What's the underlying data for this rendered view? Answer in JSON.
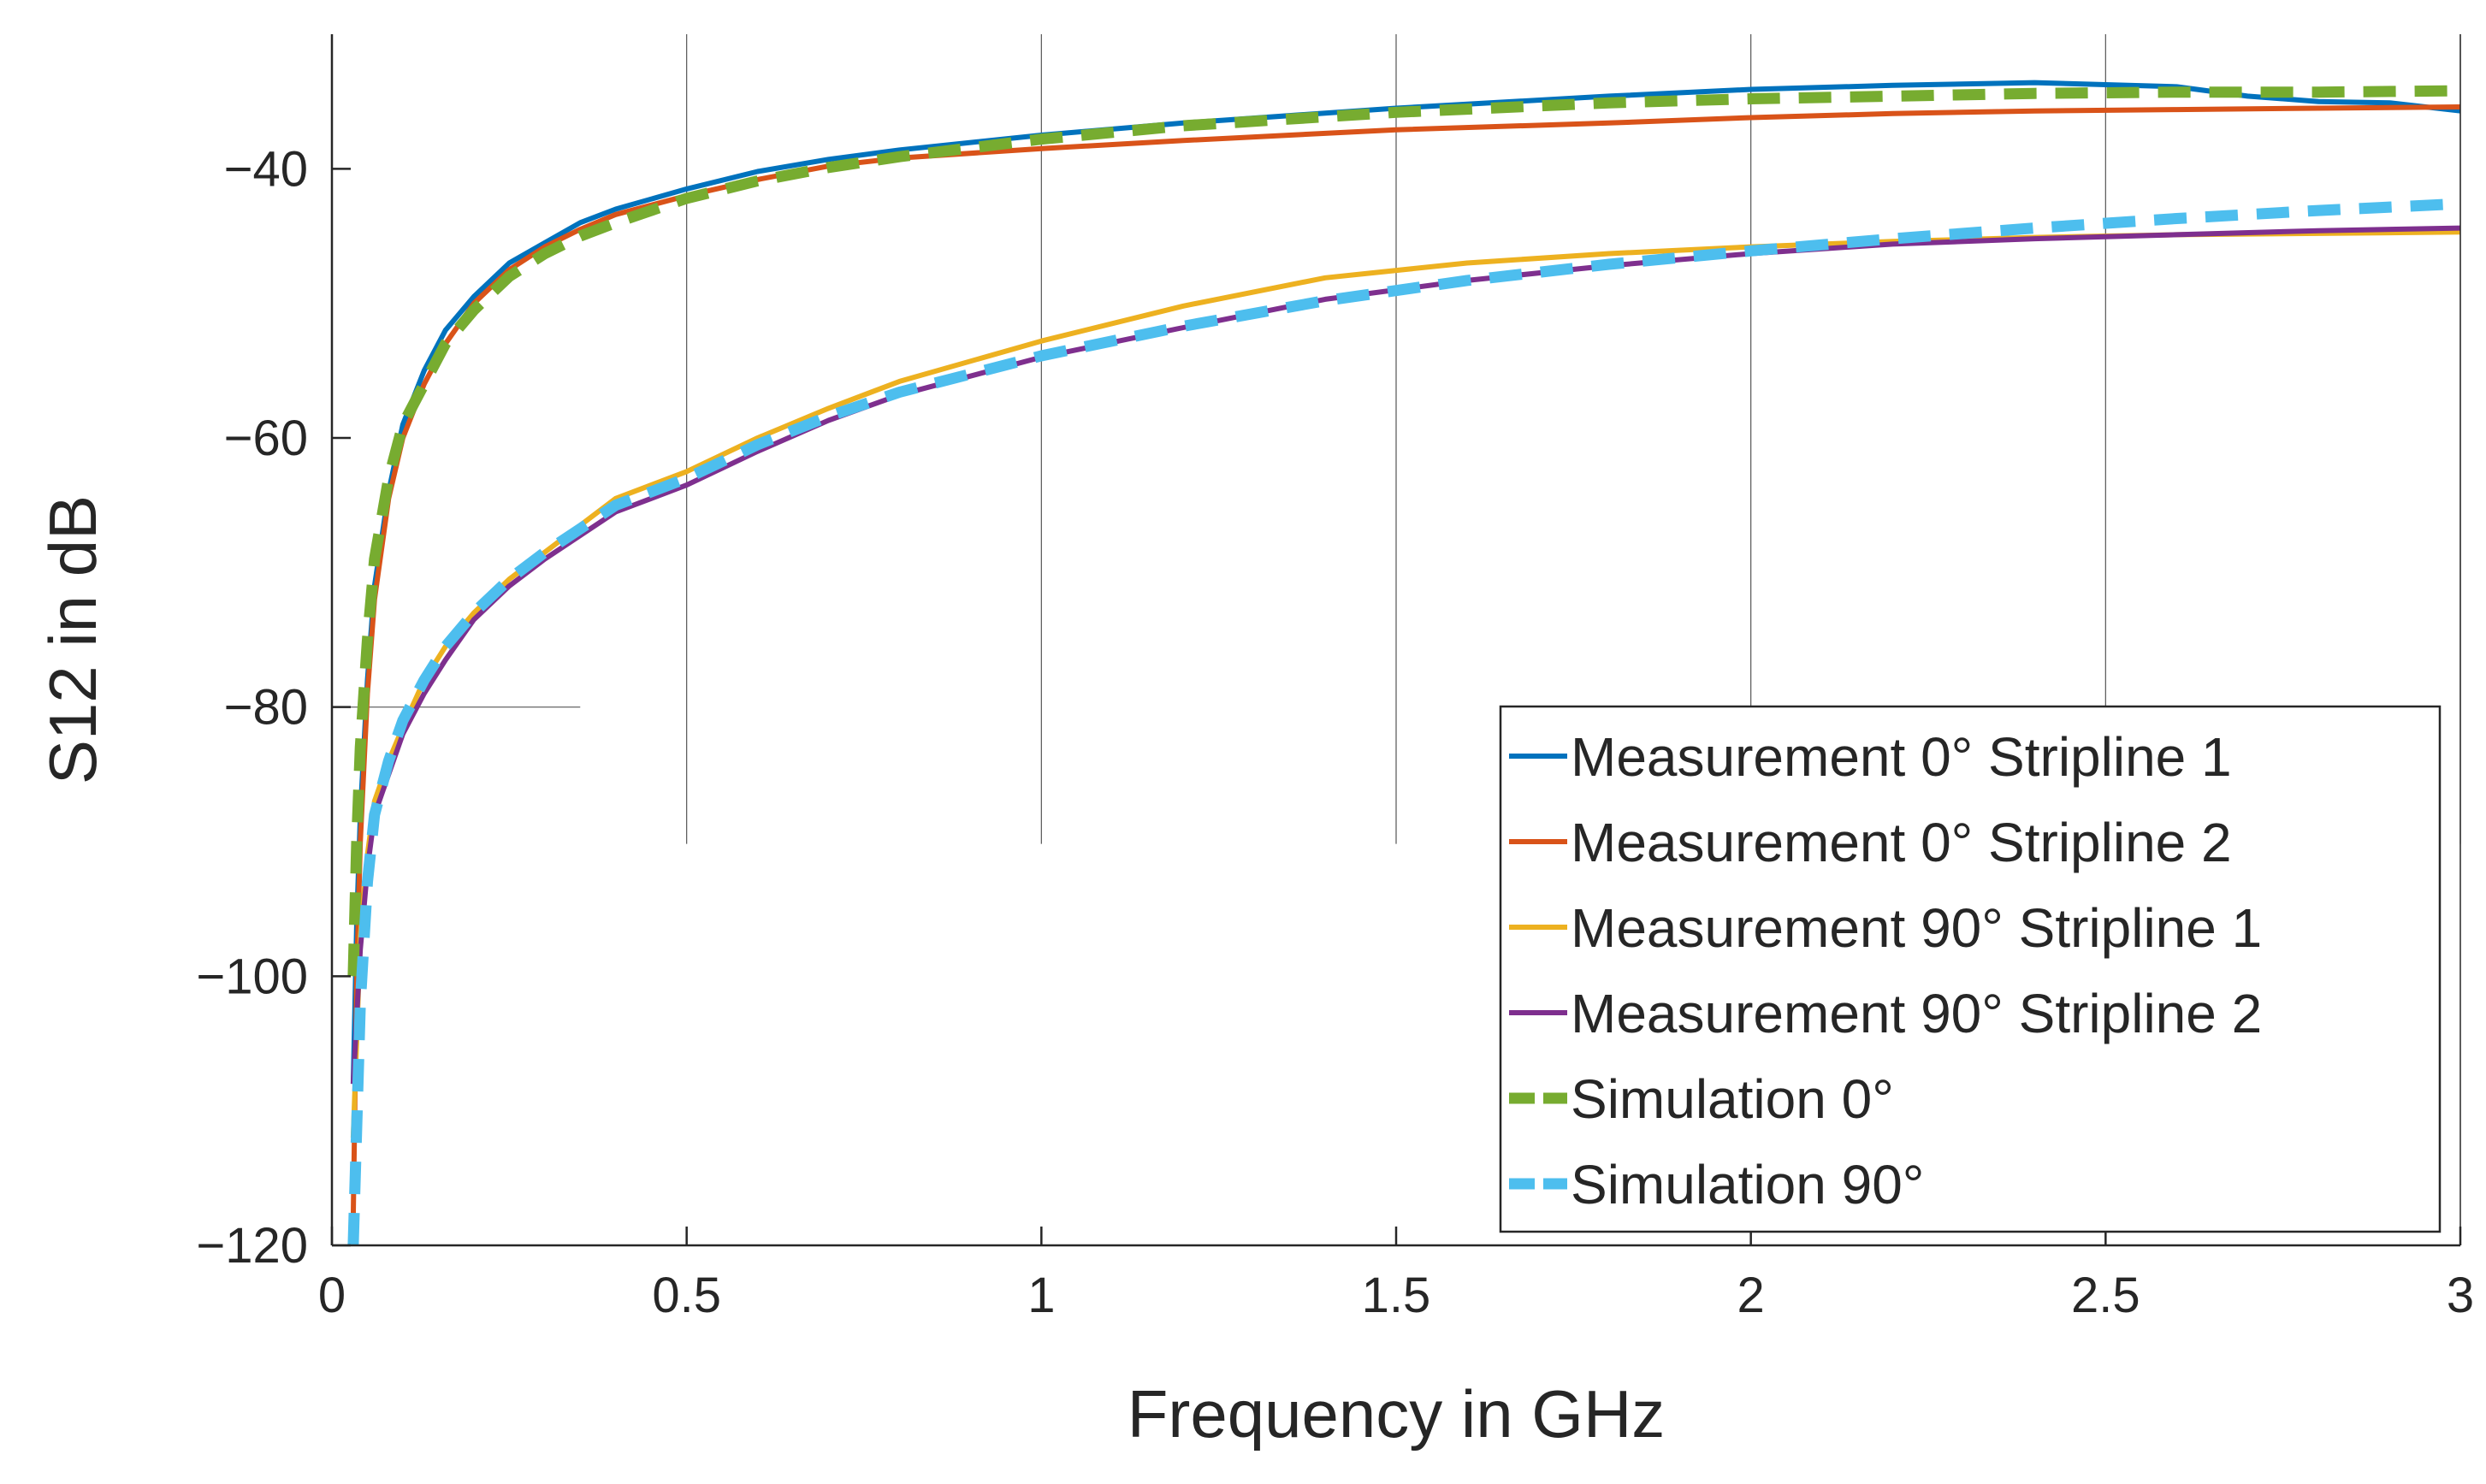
{
  "chart_data": {
    "type": "line",
    "title": "",
    "xlabel": "Frequency in GHz",
    "ylabel": "S12 in dB",
    "xlim": [
      0,
      3
    ],
    "ylim": [
      -120,
      -30
    ],
    "xticks": [
      0,
      0.5,
      1,
      1.5,
      2,
      2.5,
      3
    ],
    "xtick_labels": [
      "0",
      "0.5",
      "1",
      "1.5",
      "2",
      "2.5",
      "3"
    ],
    "yticks": [
      -120,
      -100,
      -80,
      -60,
      -40
    ],
    "ytick_labels": [
      "−120",
      "−100",
      "−80",
      "−60",
      "−40"
    ],
    "grid": "vertical, upper region",
    "legend_position": "bottom-right",
    "series": [
      {
        "name": "Measurement 0° Stripline 1",
        "color": "#0072BD",
        "dashed": false,
        "x": [
          0.03,
          0.035,
          0.04,
          0.05,
          0.06,
          0.08,
          0.1,
          0.13,
          0.16,
          0.2,
          0.25,
          0.3,
          0.35,
          0.4,
          0.5,
          0.6,
          0.7,
          0.8,
          1.0,
          1.2,
          1.5,
          1.8,
          2.0,
          2.2,
          2.4,
          2.6,
          2.7,
          2.8,
          2.9,
          3.0
        ],
        "y": [
          -108,
          -96,
          -88,
          -78,
          -71,
          -64,
          -59,
          -55,
          -52,
          -49.5,
          -47,
          -45.5,
          -44,
          -43,
          -41.5,
          -40.2,
          -39.3,
          -38.6,
          -37.5,
          -36.6,
          -35.5,
          -34.6,
          -34.1,
          -33.8,
          -33.6,
          -33.9,
          -34.6,
          -35.0,
          -35.1,
          -35.7
        ]
      },
      {
        "name": "Measurement 0° Stripline 2",
        "color": "#D95319",
        "dashed": false,
        "x": [
          0.03,
          0.035,
          0.04,
          0.05,
          0.06,
          0.08,
          0.1,
          0.13,
          0.16,
          0.2,
          0.25,
          0.3,
          0.35,
          0.4,
          0.5,
          0.6,
          0.7,
          0.8,
          1.0,
          1.2,
          1.5,
          1.8,
          2.0,
          2.2,
          2.4,
          2.6,
          2.8,
          3.0
        ],
        "y": [
          -118,
          -100,
          -90,
          -79,
          -72,
          -64.5,
          -60,
          -56,
          -53,
          -50,
          -47.5,
          -45.8,
          -44.5,
          -43.4,
          -42,
          -40.8,
          -39.8,
          -39.2,
          -38.5,
          -37.9,
          -37.1,
          -36.6,
          -36.2,
          -35.9,
          -35.7,
          -35.6,
          -35.5,
          -35.4
        ]
      },
      {
        "name": "Measurement 90° Stripline 1",
        "color": "#EDB120",
        "dashed": false,
        "x": [
          0.03,
          0.04,
          0.05,
          0.06,
          0.08,
          0.1,
          0.13,
          0.16,
          0.2,
          0.25,
          0.3,
          0.4,
          0.5,
          0.6,
          0.7,
          0.8,
          1.0,
          1.2,
          1.4,
          1.6,
          1.8,
          2.0,
          2.2,
          2.4,
          2.6,
          2.8,
          3.0
        ],
        "y": [
          -112,
          -97,
          -91,
          -87,
          -84,
          -81.5,
          -78,
          -75.5,
          -73,
          -70.5,
          -68.5,
          -64.5,
          -62.5,
          -60,
          -57.8,
          -55.8,
          -52.8,
          -50.2,
          -48.1,
          -47.0,
          -46.3,
          -45.8,
          -45.4,
          -45.1,
          -44.9,
          -44.8,
          -44.7
        ]
      },
      {
        "name": "Measurement 90° Stripline 2",
        "color": "#7E2F8E",
        "dashed": false,
        "x": [
          0.03,
          0.04,
          0.05,
          0.06,
          0.08,
          0.1,
          0.13,
          0.16,
          0.2,
          0.25,
          0.3,
          0.4,
          0.5,
          0.6,
          0.7,
          0.8,
          1.0,
          1.2,
          1.4,
          1.6,
          1.8,
          2.0,
          2.2,
          2.4,
          2.6,
          2.8,
          3.0
        ],
        "y": [
          -108,
          -98,
          -92,
          -88,
          -85,
          -82,
          -79,
          -76.5,
          -73.5,
          -71,
          -69,
          -65.5,
          -63.5,
          -61,
          -58.7,
          -56.8,
          -54,
          -51.8,
          -49.7,
          -48.3,
          -47.2,
          -46.3,
          -45.6,
          -45.2,
          -44.9,
          -44.6,
          -44.4
        ]
      },
      {
        "name": "Simulation 0°",
        "color": "#77AC30",
        "dashed": true,
        "x": [
          0.03,
          0.035,
          0.04,
          0.05,
          0.06,
          0.08,
          0.1,
          0.13,
          0.16,
          0.2,
          0.25,
          0.3,
          0.35,
          0.4,
          0.5,
          0.6,
          0.7,
          0.8,
          1.0,
          1.2,
          1.5,
          1.8,
          2.0,
          2.2,
          2.4,
          2.6,
          2.8,
          3.0
        ],
        "y": [
          -100,
          -90,
          -83,
          -75,
          -69,
          -63,
          -59,
          -56,
          -53,
          -50.5,
          -48,
          -46.3,
          -45,
          -44,
          -42.2,
          -40.9,
          -39.9,
          -39.1,
          -37.8,
          -36.8,
          -35.8,
          -35.1,
          -34.8,
          -34.6,
          -34.4,
          -34.3,
          -34.3,
          -34.2
        ]
      },
      {
        "name": "Simulation 90°",
        "color": "#4DBEEE",
        "dashed": true,
        "x": [
          0.03,
          0.04,
          0.05,
          0.06,
          0.08,
          0.1,
          0.13,
          0.16,
          0.2,
          0.25,
          0.3,
          0.4,
          0.5,
          0.6,
          0.7,
          0.8,
          1.0,
          1.2,
          1.4,
          1.6,
          1.8,
          2.0,
          2.2,
          2.4,
          2.6,
          2.8,
          3.0
        ],
        "y": [
          -120,
          -102,
          -93,
          -88,
          -84,
          -81,
          -78,
          -75.5,
          -73,
          -70.5,
          -68.5,
          -65,
          -63,
          -60.5,
          -58.4,
          -56.6,
          -53.9,
          -51.7,
          -49.8,
          -48.3,
          -47.1,
          -46.1,
          -45.2,
          -44.4,
          -43.7,
          -43.1,
          -42.6
        ]
      }
    ]
  }
}
